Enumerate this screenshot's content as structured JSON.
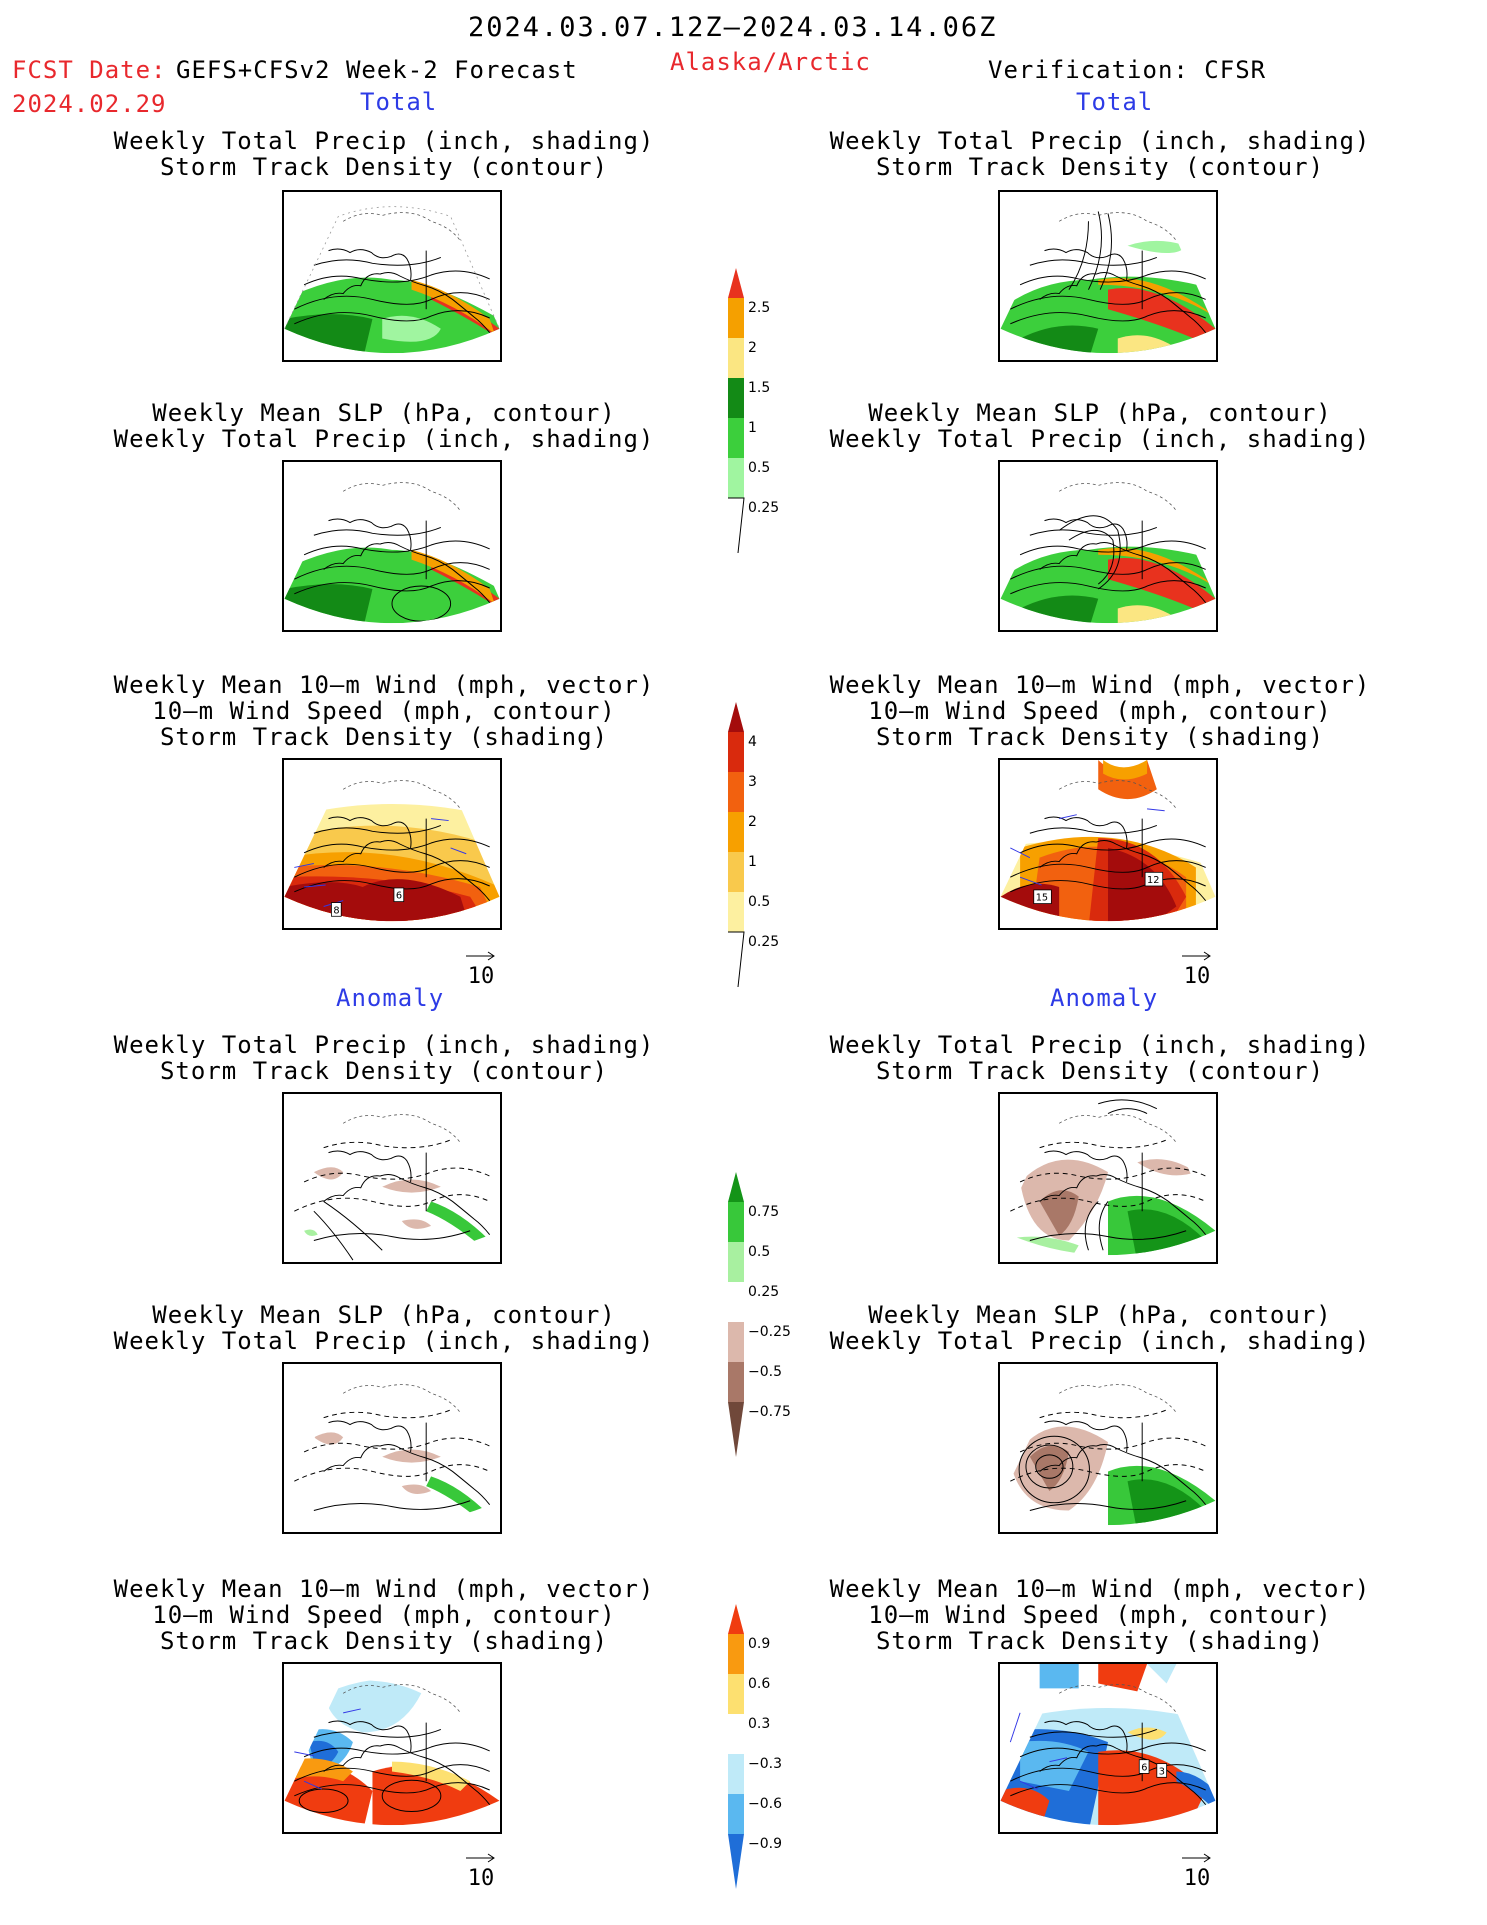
{
  "header": {
    "period": "2024.03.07.12Z–2024.03.14.06Z",
    "fcst_label": "FCST Date:",
    "fcst_model": "GEFS+CFSv2 Week-2 Forecast",
    "fcst_date": "2024.02.29",
    "region": "Alaska/Arctic",
    "verification": "Verification: CFSR"
  },
  "sections": {
    "total_left": "Total",
    "total_right": "Total",
    "anomaly_left": "Anomaly",
    "anomaly_right": "Anomaly"
  },
  "panel_titles": {
    "precip_track": [
      "Weekly Total Precip (inch, shading)",
      "Storm Track Density (contour)"
    ],
    "slp_precip": [
      "Weekly Mean SLP (hPa, contour)",
      "Weekly Total Precip (inch, shading)"
    ],
    "wind_track": [
      "Weekly Mean 10–m Wind (mph, vector)",
      "10–m Wind Speed (mph, contour)",
      "Storm Track Density (shading)"
    ]
  },
  "vector_ref": "10",
  "map_labels": {
    "fc_wind_a": "8",
    "fc_wind_b": "6",
    "ob_wind_a": "15",
    "ob_wind_b": "12",
    "ob_anom_a": "6",
    "ob_anom_b": "3"
  },
  "colorbars": {
    "precip_total": {
      "labels": [
        "2.5",
        "2",
        "1.5",
        "1",
        "0.5",
        "0.25"
      ],
      "colors": [
        "#e8321e",
        "#f5a000",
        "#fbe682",
        "#138a16",
        "#3ccf3c",
        "#a0f5a0"
      ]
    },
    "track_total": {
      "labels": [
        "4",
        "3",
        "2",
        "1",
        "0.5",
        "0.25"
      ],
      "colors": [
        "#a40c0c",
        "#d92a0d",
        "#f2610f",
        "#f7a000",
        "#f9c94c",
        "#fdf0a0"
      ]
    },
    "precip_anom": {
      "labels": [
        "0.75",
        "0.5",
        "0.25",
        "−0.25",
        "−0.5",
        "−0.75"
      ],
      "colors": [
        "#149418",
        "#38c83a",
        "#a8f0a0",
        "#ffffff",
        "#dcb8ac",
        "#a97868",
        "#70483a"
      ]
    },
    "track_anom": {
      "labels": [
        "0.9",
        "0.6",
        "0.3",
        "−0.3",
        "−0.6",
        "−0.9"
      ],
      "colors": [
        "#f03c10",
        "#f99a10",
        "#fde070",
        "#ffffff",
        "#bfeaf8",
        "#5ab8f0",
        "#1f6ed8"
      ]
    }
  }
}
